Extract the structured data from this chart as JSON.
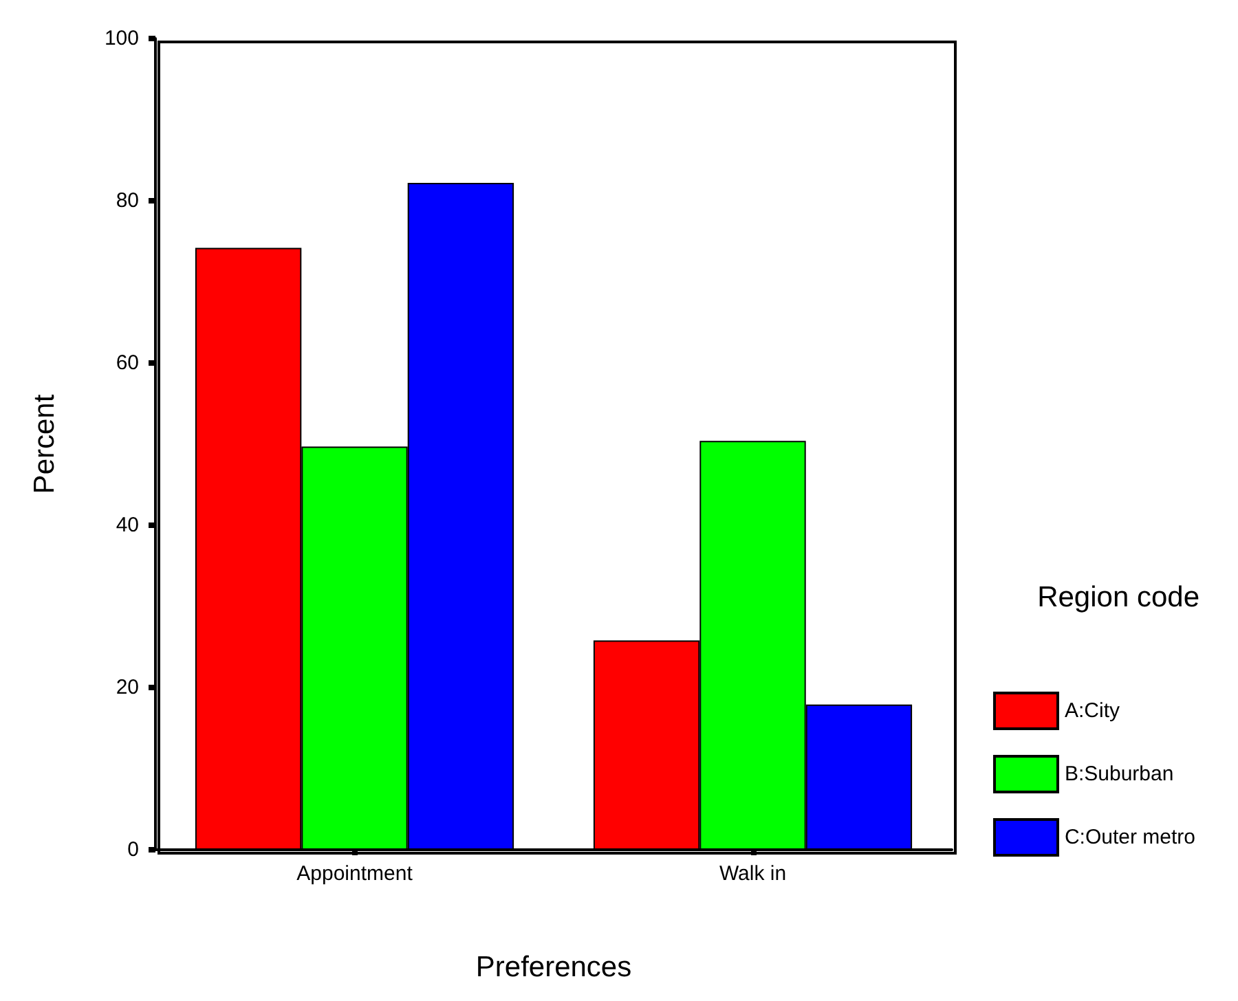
{
  "chart_data": {
    "type": "bar",
    "xlabel": "Preferences",
    "ylabel": "Percent",
    "legend_title": "Region code",
    "categories": [
      "Appointment",
      "Walk in"
    ],
    "series": [
      {
        "name": "A:City",
        "color": "#ff0000",
        "values": [
          74.2,
          25.8
        ]
      },
      {
        "name": "B:Suburban",
        "color": "#00ff00",
        "values": [
          49.7,
          50.4
        ]
      },
      {
        "name": "C:Outer metro",
        "color": "#0000ff",
        "values": [
          82.2,
          17.9
        ]
      }
    ],
    "ylim": [
      0,
      100
    ],
    "yticks": [
      0,
      20,
      40,
      60,
      80,
      100
    ],
    "grid": false,
    "legend": "right"
  }
}
